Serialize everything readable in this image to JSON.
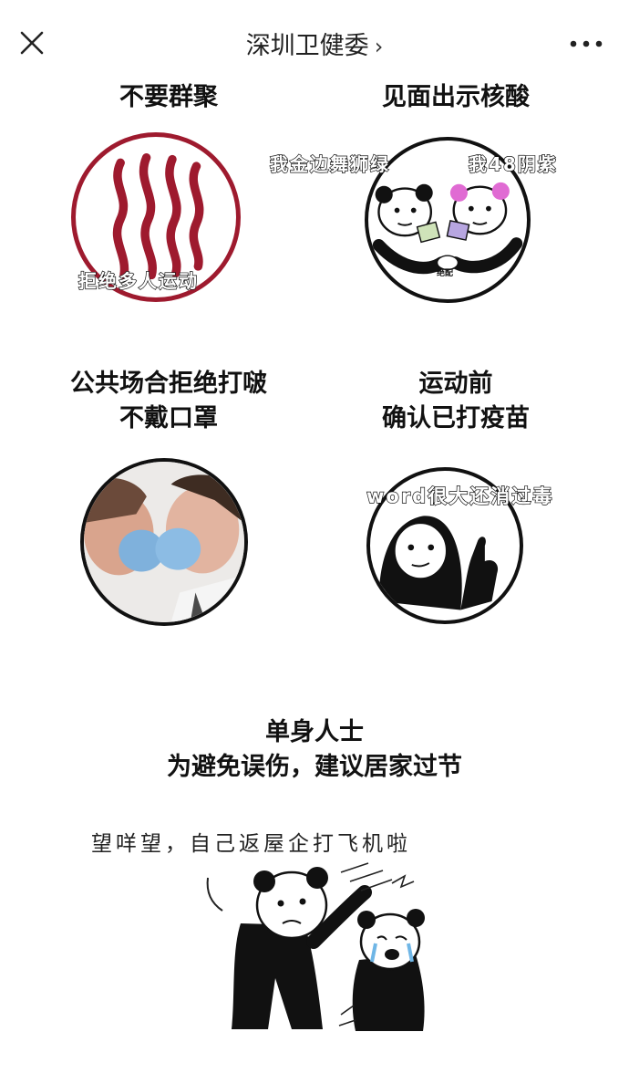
{
  "header": {
    "title": "深圳卫健委",
    "chevron": "›",
    "close_icon": "close-icon",
    "more_icon": "more-horizontal-icon"
  },
  "panels": [
    {
      "heading": "不要群聚",
      "caption": "拒绝多人运动"
    },
    {
      "heading": "见面出示核酸",
      "caption_left": "我金边舞狮绿",
      "caption_right": "我48阴紫",
      "tag": "绝配"
    },
    {
      "heading_line1": "公共场合拒绝打啵",
      "heading_line2": "不戴口罩"
    },
    {
      "heading_line1": "运动前",
      "heading_line2": "确认已打疫苗",
      "caption": "word很大还消过毒"
    }
  ],
  "bottom": {
    "heading_line1": "单身人士",
    "heading_line2": "为避免误伤，建议居家过节",
    "caption": "望咩望，自己返屋企打飞机啦"
  },
  "colors": {
    "accent_red": "#9e1a2e",
    "ink": "#111111",
    "mask_blue": "#7fb1dc"
  }
}
